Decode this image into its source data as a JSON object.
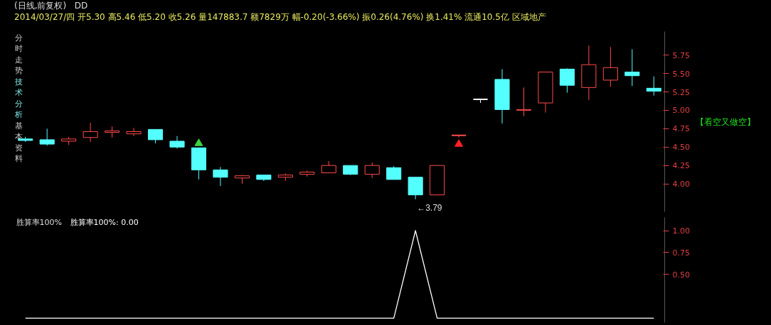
{
  "chart_data": [
    {
      "type": "candlestick",
      "title": "(日线,前复权)",
      "categories": [
        null,
        null,
        null,
        null,
        null,
        null,
        null,
        null,
        null,
        null,
        null,
        null,
        null,
        null,
        null,
        null,
        null,
        null,
        null,
        null,
        null,
        null,
        null,
        null,
        null,
        null,
        null,
        null,
        null,
        null
      ],
      "ohlc": [
        [
          4.61,
          4.64,
          4.57,
          4.59
        ],
        [
          4.6,
          4.75,
          4.52,
          4.54
        ],
        [
          4.58,
          4.64,
          4.53,
          4.61
        ],
        [
          4.63,
          4.83,
          4.57,
          4.71
        ],
        [
          4.7,
          4.78,
          4.63,
          4.72
        ],
        [
          4.68,
          4.76,
          4.65,
          4.71
        ],
        [
          4.74,
          4.74,
          4.55,
          4.6
        ],
        [
          4.58,
          4.65,
          4.48,
          4.5
        ],
        [
          4.49,
          4.49,
          4.06,
          4.19
        ],
        [
          4.19,
          4.23,
          3.97,
          4.09
        ],
        [
          4.08,
          4.12,
          4.0,
          4.11
        ],
        [
          4.12,
          4.12,
          4.04,
          4.06
        ],
        [
          4.09,
          4.14,
          4.04,
          4.12
        ],
        [
          4.13,
          4.18,
          4.1,
          4.16
        ],
        [
          4.15,
          4.31,
          4.15,
          4.25
        ],
        [
          4.25,
          4.25,
          4.12,
          4.13
        ],
        [
          4.13,
          4.29,
          4.08,
          4.25
        ],
        [
          4.22,
          4.24,
          4.06,
          4.06
        ],
        [
          4.09,
          4.09,
          3.79,
          3.85
        ],
        [
          3.85,
          4.25,
          3.85,
          4.25
        ],
        [
          4.66,
          4.66,
          4.63,
          4.66
        ],
        [
          5.15,
          5.15,
          5.1,
          5.15
        ],
        [
          5.42,
          5.56,
          4.82,
          5.01
        ],
        [
          5.0,
          5.31,
          4.92,
          5.01
        ],
        [
          5.1,
          5.52,
          4.97,
          5.52
        ],
        [
          5.56,
          5.57,
          5.24,
          5.34
        ],
        [
          5.31,
          5.88,
          5.14,
          5.62
        ],
        [
          5.41,
          5.86,
          5.32,
          5.58
        ],
        [
          5.52,
          5.83,
          5.33,
          5.47
        ],
        [
          5.3,
          5.46,
          5.2,
          5.26
        ]
      ],
      "colors": [
        "#54ffff",
        "#54ffff",
        "#ff4a4a",
        "#ff4a4a",
        "#ff4a4a",
        "#ff4a4a",
        "#54ffff",
        "#54ffff",
        "#54ffff",
        "#54ffff",
        "#ff4a4a",
        "#54ffff",
        "#ff4a4a",
        "#ff4a4a",
        "#ff4a4a",
        "#54ffff",
        "#ff4a4a",
        "#54ffff",
        "#54ffff",
        "#ff4a4a",
        "#ff4a4a",
        "#ffffff",
        "#54ffff",
        "#ff4a4a",
        "#ff4a4a",
        "#54ffff",
        "#ff4a4a",
        "#ff4a4a",
        "#54ffff",
        "#54ffff"
      ],
      "series": [
        {
          "type": "scatter",
          "color": "#3fd13f",
          "marker": "triangle",
          "values": [
            null,
            null,
            null,
            null,
            null,
            null,
            null,
            null,
            4.55,
            null,
            null,
            null,
            null,
            null,
            null,
            null,
            null,
            null,
            null,
            null,
            null,
            null,
            null,
            null,
            null,
            null,
            null,
            null,
            null,
            null
          ]
        },
        {
          "type": "scatter",
          "color": "#ff2020",
          "marker": "triangle",
          "values": [
            null,
            null,
            null,
            null,
            null,
            null,
            null,
            null,
            null,
            null,
            null,
            null,
            null,
            null,
            null,
            null,
            null,
            null,
            null,
            null,
            4.54,
            null,
            null,
            null,
            null,
            null,
            null,
            null,
            null,
            null
          ]
        }
      ],
      "ylim": [
        3.62,
        6.07
      ],
      "yticks": [
        {
          "value": 4.0,
          "label": "4.00"
        },
        {
          "value": 4.25,
          "label": "4.25"
        },
        {
          "value": 4.5,
          "label": "4.50"
        },
        {
          "value": 4.75,
          "label": "4.75"
        },
        {
          "value": 5.0,
          "label": "5.00"
        },
        {
          "value": 5.25,
          "label": "5.25"
        },
        {
          "value": 5.5,
          "label": "5.50"
        },
        {
          "value": 5.75,
          "label": "5.75"
        }
      ],
      "grid": false,
      "tick_labels": "y",
      "annotations": [
        "DD",
        "2014/03/27/四 开5.30 高5.46 低5.20 收5.26 量147883.7 额7829万 幅-0.20(-3.66%) 振0.26(4.76%) 换1.41% 流通10.5亿 区域地产",
        "【看空又做空】",
        "分时走势",
        "技术分析",
        "基本资料",
        "←3.79"
      ]
    },
    {
      "type": "line",
      "title": "胜算率100%",
      "subtitle": "胜算率100%: 0.00",
      "categories": [
        null,
        null,
        null,
        null,
        null,
        null,
        null,
        null,
        null,
        null,
        null,
        null,
        null,
        null,
        null,
        null,
        null,
        null,
        null,
        null,
        null,
        null,
        null,
        null,
        null,
        null,
        null,
        null,
        null,
        null
      ],
      "series": [
        {
          "color": "#ffffff",
          "values": [
            0,
            0,
            0,
            0,
            0,
            0,
            0,
            0,
            0,
            0,
            0,
            0,
            0,
            0,
            0,
            0,
            0,
            0,
            1,
            0,
            0,
            0,
            0,
            0,
            0,
            0,
            0,
            0,
            0,
            0
          ]
        }
      ],
      "ylim": [
        -0.05,
        1.15
      ],
      "yticks": [
        {
          "value": 0.5,
          "label": "0.50"
        },
        {
          "value": 0.75,
          "label": "0.75"
        },
        {
          "value": 1.0,
          "label": "1.00"
        }
      ],
      "grid": false,
      "tick_labels": "y"
    }
  ]
}
